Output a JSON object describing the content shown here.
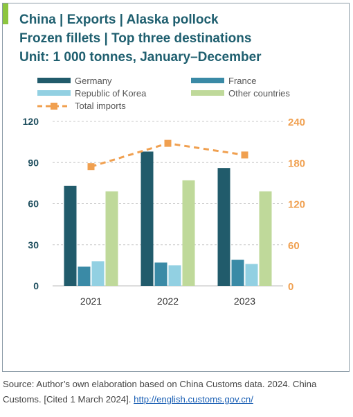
{
  "title": {
    "line1": "China | Exports | Alaska pollock",
    "line2": "Frozen fillets | Top three destinations",
    "line3": "Unit: 1 000 tonnes, January–December"
  },
  "colors": {
    "Germany": "#215b6b",
    "France": "#3a8aa6",
    "Republic of Korea": "#92d0e2",
    "Other countries": "#bfd99a",
    "Total imports": "#f0a050",
    "accent": "#8dc63f"
  },
  "chart_data": {
    "type": "bar",
    "categories": [
      "2021",
      "2022",
      "2023"
    ],
    "series": [
      {
        "name": "Germany",
        "values": [
          73,
          98,
          86
        ],
        "axis": "left"
      },
      {
        "name": "France",
        "values": [
          14,
          17,
          19
        ],
        "axis": "left"
      },
      {
        "name": "Republic of Korea",
        "values": [
          18,
          15,
          16
        ],
        "axis": "left"
      },
      {
        "name": "Other countries",
        "values": [
          69,
          77,
          69
        ],
        "axis": "left"
      }
    ],
    "line_series": [
      {
        "name": "Total imports",
        "values": [
          174,
          208,
          191
        ],
        "axis": "right",
        "style": "dashed",
        "marker": "square"
      }
    ],
    "ylim": [
      0,
      120
    ],
    "y2lim": [
      0,
      240
    ],
    "yticks": [
      "0",
      "30",
      "60",
      "90",
      "120"
    ],
    "y2ticks": [
      "0",
      "60",
      "120",
      "180",
      "240"
    ],
    "grid": true,
    "legend_position": "top"
  },
  "source": {
    "text": "Source: Author’s own elaboration based on China Customs data. 2024. China Customs. [Cited 1 March 2024]. ",
    "link": "http://english.customs.gov.cn/"
  }
}
